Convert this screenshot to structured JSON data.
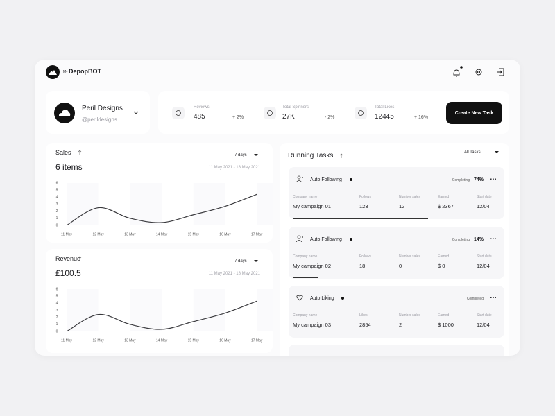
{
  "header": {
    "brand_prefix": "My",
    "brand": "DepopBOT"
  },
  "profile": {
    "name": "Peril Designs",
    "handle": "@perildesigns"
  },
  "stats": [
    {
      "label": "Reviews",
      "value": "485",
      "change": "+ 2%"
    },
    {
      "label": "Total Spinners",
      "value": "27K",
      "change": "- 2%"
    },
    {
      "label": "Total Likes",
      "value": "12445",
      "change": "+ 16%"
    }
  ],
  "create_button": "Create New Task",
  "sales": {
    "title": "Sales",
    "summary": "6 items",
    "period": "7 days",
    "date_range": "11 May 2021 - 18 May 2021",
    "chart": {
      "type": "line",
      "categories": [
        "11 May",
        "12 May",
        "13 May",
        "14 May",
        "15 May",
        "16 May",
        "17 May"
      ],
      "values": [
        0,
        2.5,
        1,
        0.4,
        1.5,
        2.7,
        4.4
      ],
      "ylim": [
        0,
        6
      ],
      "yticks": [
        0,
        1,
        2,
        3,
        4,
        5,
        6
      ],
      "color": "#3a3a3e"
    }
  },
  "revenue": {
    "title": "Revenue",
    "summary": "£100.5",
    "period": "7 days",
    "date_range": "11 May 2021 - 18 May 2021",
    "chart": {
      "type": "line",
      "categories": [
        "11 May",
        "12 May",
        "13 May",
        "14 May",
        "15 May",
        "16 May",
        "17 May"
      ],
      "values": [
        0,
        2.4,
        1,
        0.3,
        1.4,
        2.6,
        4.3
      ],
      "ylim": [
        0,
        6
      ],
      "yticks": [
        0,
        1,
        2,
        3,
        4,
        5,
        6
      ],
      "color": "#3a3a3e"
    }
  },
  "tasks": {
    "title": "Running Tasks",
    "filter": "All Tasks",
    "items": [
      {
        "title": "Auto Following",
        "status": "Completing",
        "progress": {
          "value": 74,
          "label": "74%"
        },
        "fields": [
          {
            "label": "Company name",
            "value": "My campaign 01"
          },
          {
            "label": "Follows",
            "value": "123"
          },
          {
            "label": "Number sales",
            "value": "12"
          },
          {
            "label": "Earned",
            "value": "$ 2367"
          },
          {
            "label": "Start date",
            "value": "12/04"
          }
        ]
      },
      {
        "title": "Auto Following",
        "status": "Completing",
        "progress": {
          "value": 14,
          "label": "14%"
        },
        "fields": [
          {
            "label": "Company name",
            "value": "My campaign 02"
          },
          {
            "label": "Follows",
            "value": "18"
          },
          {
            "label": "Number sales",
            "value": "0"
          },
          {
            "label": "Earned",
            "value": "$ 0"
          },
          {
            "label": "Start date",
            "value": "12/04"
          }
        ]
      },
      {
        "title": "Auto Liking",
        "status": "Completed",
        "fields": [
          {
            "label": "Company name",
            "value": "My campaign 03"
          },
          {
            "label": "Likes",
            "value": "2854"
          },
          {
            "label": "Number sales",
            "value": "2"
          },
          {
            "label": "Earned",
            "value": "$ 1000"
          },
          {
            "label": "Start date",
            "value": "12/04"
          }
        ]
      }
    ]
  }
}
